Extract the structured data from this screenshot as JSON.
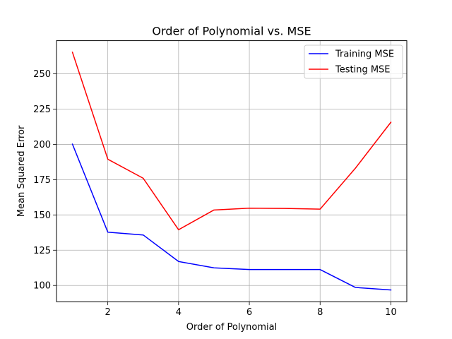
{
  "chart_data": {
    "type": "line",
    "title": "Order of Polynomial vs. MSE",
    "xlabel": "Order of Polynomial",
    "ylabel": "Mean Squared Error",
    "x": [
      1,
      2,
      3,
      4,
      5,
      6,
      7,
      8,
      9,
      10
    ],
    "xlim": [
      0.55,
      10.45
    ],
    "ylim": [
      88.5,
      273.5
    ],
    "xticks": [
      2,
      4,
      6,
      8,
      10
    ],
    "yticks": [
      100,
      125,
      150,
      175,
      200,
      225,
      250
    ],
    "grid": true,
    "legend_position": "top-right",
    "series": [
      {
        "name": "Training MSE",
        "color": "#0000ff",
        "values": [
          200.2,
          137.8,
          135.8,
          117.0,
          112.5,
          111.3,
          111.3,
          111.3,
          98.6,
          96.8
        ]
      },
      {
        "name": "Testing MSE",
        "color": "#ff0000",
        "values": [
          265.3,
          189.5,
          176.0,
          139.5,
          153.5,
          154.8,
          154.6,
          154.1,
          183.2,
          215.7
        ]
      }
    ]
  }
}
